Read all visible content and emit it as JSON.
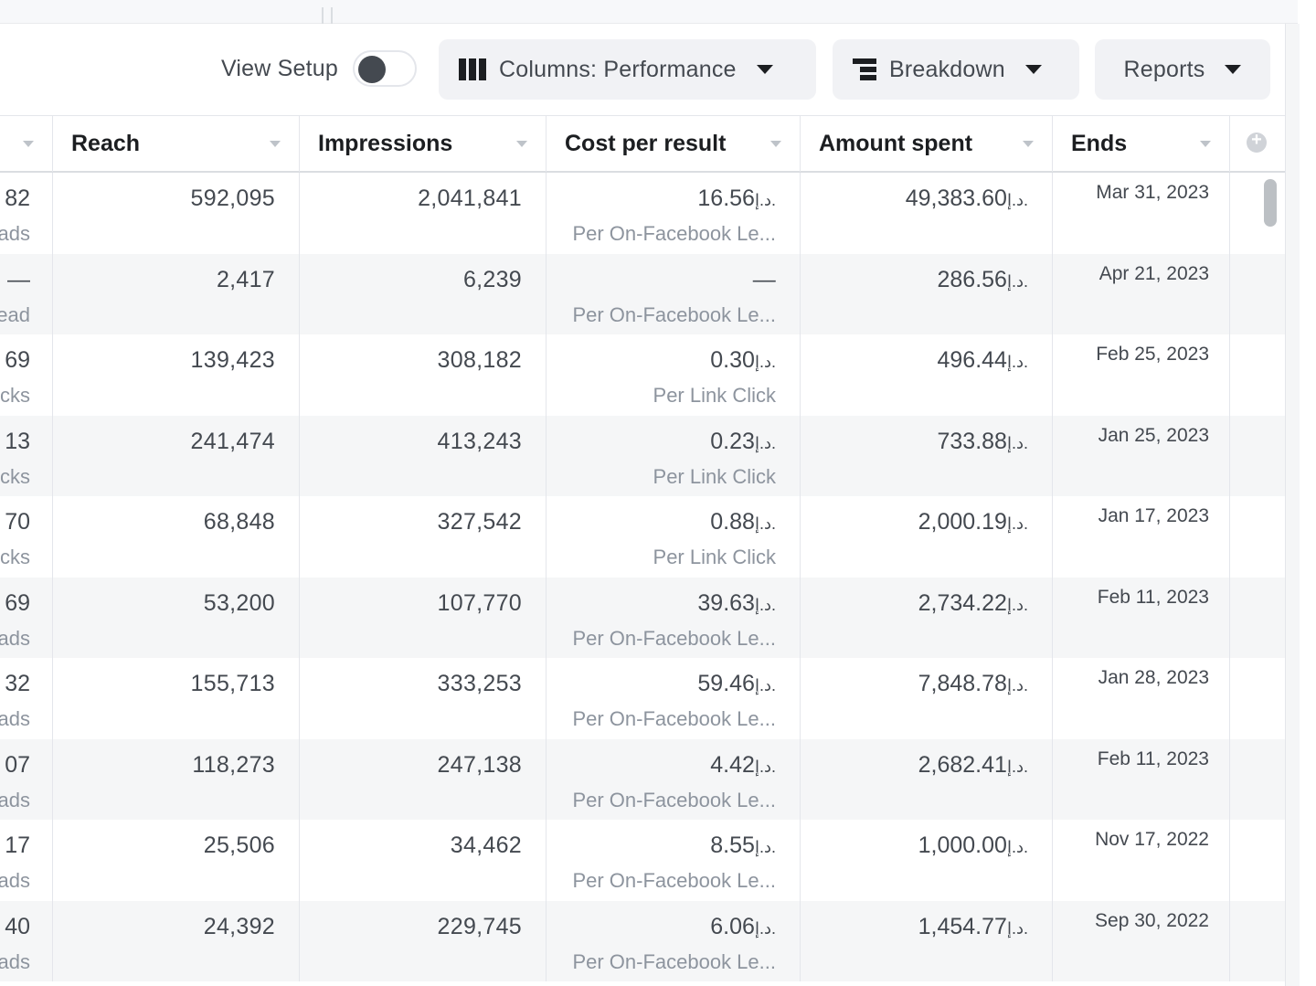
{
  "toolbar": {
    "view_setup_label": "View Setup",
    "view_setup_toggle_on": false,
    "columns_label": "Columns: Performance",
    "breakdown_label": "Breakdown",
    "reports_label": "Reports"
  },
  "table": {
    "headers": {
      "reach": "Reach",
      "impressions": "Impressions",
      "cost_per_result": "Cost per result",
      "amount_spent": "Amount spent",
      "ends": "Ends"
    },
    "currency_symbol": "د.إ.",
    "rows": [
      {
        "first_value": "82",
        "first_sub": "ads",
        "reach": "592,095",
        "impressions": "2,041,841",
        "cost": "16.56",
        "cost_sub": "Per On-Facebook Le...",
        "spent": "49,383.60",
        "ends": "Mar 31, 2023"
      },
      {
        "first_value": "—",
        "first_sub": "ead",
        "reach": "2,417",
        "impressions": "6,239",
        "cost": "—",
        "cost_sub": "Per On-Facebook Le...",
        "spent": "286.56",
        "ends": "Apr 21, 2023"
      },
      {
        "first_value": "69",
        "first_sub": "cks",
        "reach": "139,423",
        "impressions": "308,182",
        "cost": "0.30",
        "cost_sub": "Per Link Click",
        "spent": "496.44",
        "ends": "Feb 25, 2023"
      },
      {
        "first_value": "13",
        "first_sub": "cks",
        "reach": "241,474",
        "impressions": "413,243",
        "cost": "0.23",
        "cost_sub": "Per Link Click",
        "spent": "733.88",
        "ends": "Jan 25, 2023"
      },
      {
        "first_value": "70",
        "first_sub": "cks",
        "reach": "68,848",
        "impressions": "327,542",
        "cost": "0.88",
        "cost_sub": "Per Link Click",
        "spent": "2,000.19",
        "ends": "Jan 17, 2023"
      },
      {
        "first_value": "69",
        "first_sub": "ads",
        "reach": "53,200",
        "impressions": "107,770",
        "cost": "39.63",
        "cost_sub": "Per On-Facebook Le...",
        "spent": "2,734.22",
        "ends": "Feb 11, 2023"
      },
      {
        "first_value": "32",
        "first_sub": "ads",
        "reach": "155,713",
        "impressions": "333,253",
        "cost": "59.46",
        "cost_sub": "Per On-Facebook Le...",
        "spent": "7,848.78",
        "ends": "Jan 28, 2023"
      },
      {
        "first_value": "07",
        "first_sub": "ads",
        "reach": "118,273",
        "impressions": "247,138",
        "cost": "4.42",
        "cost_sub": "Per On-Facebook Le...",
        "spent": "2,682.41",
        "ends": "Feb 11, 2023"
      },
      {
        "first_value": "17",
        "first_sub": "ads",
        "reach": "25,506",
        "impressions": "34,462",
        "cost": "8.55",
        "cost_sub": "Per On-Facebook Le...",
        "spent": "1,000.00",
        "ends": "Nov 17, 2022"
      },
      {
        "first_value": "40",
        "first_sub": "ads",
        "reach": "24,392",
        "impressions": "229,745",
        "cost": "6.06",
        "cost_sub": "Per On-Facebook Le...",
        "spent": "1,454.77",
        "ends": "Sep 30, 2022"
      }
    ]
  }
}
